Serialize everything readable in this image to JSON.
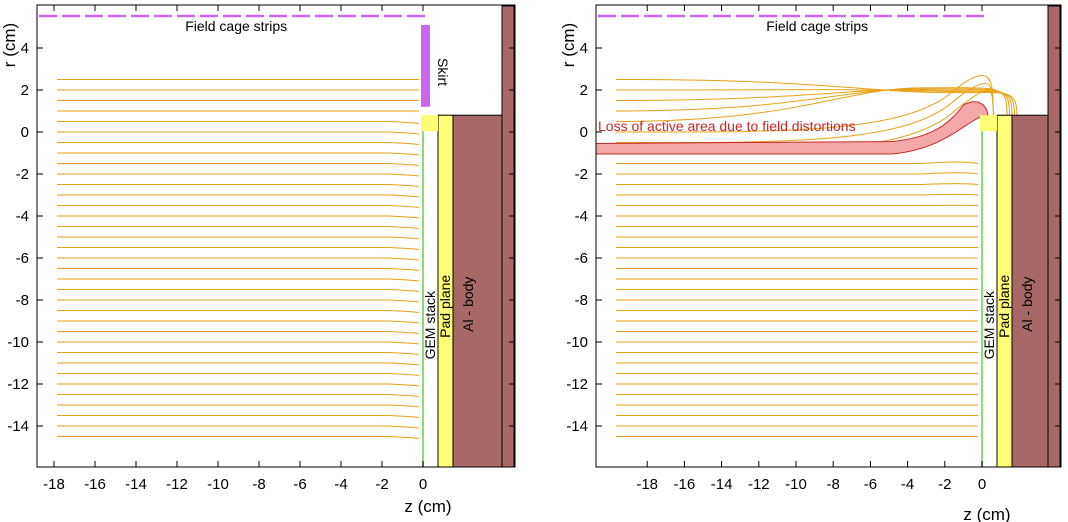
{
  "panels": [
    {
      "id": "left",
      "xlabel": "z (cm)",
      "ylabel": "r (cm)",
      "xticks": [
        -18,
        -16,
        -14,
        -12,
        -10,
        -8,
        -6,
        -4,
        -2,
        0
      ],
      "yticks": [
        4,
        2,
        0,
        -2,
        -4,
        -6,
        -8,
        -10,
        -12,
        -14
      ],
      "annotations": {
        "field_cage": "Field cage strips",
        "skirt": "Skirt",
        "gem": "GEM stack",
        "pad": "Pad plane",
        "body": "Al - body"
      },
      "has_skirt": true,
      "distortion": false
    },
    {
      "id": "right",
      "xlabel": "z (cm)",
      "ylabel": "r (cm)",
      "xticks": [
        -18,
        -16,
        -14,
        -12,
        -10,
        -8,
        -6,
        -4,
        -2,
        0
      ],
      "yticks": [
        4,
        2,
        0,
        -2,
        -4,
        -6,
        -8,
        -10,
        -12,
        -14
      ],
      "annotations": {
        "field_cage": "Field cage strips",
        "loss": "Loss of active area due to field distortions",
        "gem": "GEM stack",
        "pad": "Pad plane",
        "body": "Al - body"
      },
      "has_skirt": false,
      "distortion": true
    }
  ],
  "colors": {
    "field_line": "#e8a118",
    "field_cage": "#cc66ee",
    "skirt": "#cc66ee",
    "gem": "#88dd77",
    "pad_plane": "#ffff77",
    "al_body": "#a86868",
    "distortion_band": "#f4a8a8",
    "distortion_text": "#c62828"
  }
}
